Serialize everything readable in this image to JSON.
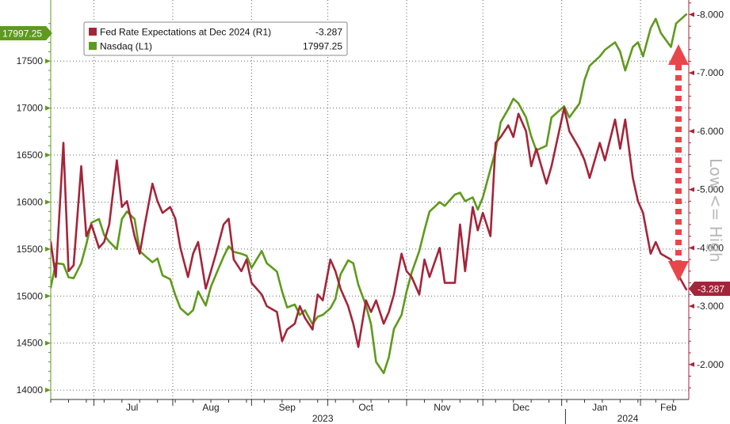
{
  "chart_data": {
    "type": "line",
    "title": "",
    "colors": {
      "fed": "#a3253a",
      "nasdaq": "#5e9a1c",
      "arrow": "#e8464a",
      "annotation": "#b8b8b8",
      "grid": "#666666"
    },
    "x_axis": {
      "months": [
        "Jul",
        "Aug",
        "Sep",
        "Oct",
        "Nov",
        "Dec",
        "Jan",
        "Feb"
      ],
      "years": [
        "2023",
        "2024"
      ],
      "range": [
        "2023-06-14",
        "2024-02-20"
      ]
    },
    "y_left": {
      "label": "",
      "range": [
        13900,
        18150
      ],
      "ticks": [
        "14000",
        "14500",
        "15000",
        "15500",
        "16000",
        "16500",
        "17000",
        "17500"
      ],
      "tick_values": [
        14000,
        14500,
        15000,
        15500,
        16000,
        16500,
        17000,
        17500
      ]
    },
    "y_right": {
      "label": "",
      "range": [
        -1.4,
        -8.25
      ],
      "inverted": true,
      "ticks": [
        "-8.000",
        "-7.000",
        "-6.000",
        "-5.000",
        "-4.000",
        "-3.000",
        "-2.000"
      ],
      "tick_values": [
        -8,
        -7,
        -6,
        -5,
        -4,
        -3,
        -2
      ]
    },
    "grid": true,
    "legend": {
      "placement": "top-left",
      "entries": [
        {
          "label": "Fed Rate Expectations at Dec 2024 (R1)",
          "value": "-3.287"
        },
        {
          "label": "Nasdaq (L1)",
          "value": "17997.25"
        }
      ]
    },
    "callouts": {
      "left": "17997.25",
      "right": "-3.287"
    },
    "annotation": "Low <= High",
    "series": [
      {
        "name": "Nasdaq (L1)",
        "axis": "left",
        "x": [
          "2023-06-14",
          "2023-06-16",
          "2023-06-19",
          "2023-06-21",
          "2023-06-23",
          "2023-06-26",
          "2023-06-28",
          "2023-06-30",
          "2023-07-03",
          "2023-07-05",
          "2023-07-07",
          "2023-07-10",
          "2023-07-12",
          "2023-07-14",
          "2023-07-17",
          "2023-07-19",
          "2023-07-21",
          "2023-07-24",
          "2023-07-26",
          "2023-07-28",
          "2023-07-31",
          "2023-08-02",
          "2023-08-04",
          "2023-08-07",
          "2023-08-09",
          "2023-08-11",
          "2023-08-14",
          "2023-08-16",
          "2023-08-18",
          "2023-08-21",
          "2023-08-23",
          "2023-08-25",
          "2023-08-28",
          "2023-08-30",
          "2023-09-01",
          "2023-09-05",
          "2023-09-07",
          "2023-09-11",
          "2023-09-13",
          "2023-09-15",
          "2023-09-18",
          "2023-09-20",
          "2023-09-22",
          "2023-09-25",
          "2023-09-27",
          "2023-09-29",
          "2023-10-02",
          "2023-10-04",
          "2023-10-06",
          "2023-10-09",
          "2023-10-11",
          "2023-10-13",
          "2023-10-16",
          "2023-10-18",
          "2023-10-20",
          "2023-10-23",
          "2023-10-25",
          "2023-10-27",
          "2023-10-30",
          "2023-11-01",
          "2023-11-03",
          "2023-11-06",
          "2023-11-08",
          "2023-11-10",
          "2023-11-14",
          "2023-11-16",
          "2023-11-20",
          "2023-11-22",
          "2023-11-24",
          "2023-11-27",
          "2023-11-29",
          "2023-12-01",
          "2023-12-04",
          "2023-12-06",
          "2023-12-08",
          "2023-12-11",
          "2023-12-13",
          "2023-12-15",
          "2023-12-18",
          "2023-12-20",
          "2023-12-22",
          "2023-12-26",
          "2023-12-28",
          "2024-01-02",
          "2024-01-04",
          "2024-01-08",
          "2024-01-10",
          "2024-01-12",
          "2024-01-16",
          "2024-01-18",
          "2024-01-22",
          "2024-01-24",
          "2024-01-26",
          "2024-01-29",
          "2024-01-31",
          "2024-02-02",
          "2024-02-05",
          "2024-02-07",
          "2024-02-09",
          "2024-02-13",
          "2024-02-15",
          "2024-02-19"
        ],
        "values": [
          15090,
          15350,
          15340,
          15200,
          15190,
          15350,
          15550,
          15780,
          15820,
          15650,
          15580,
          15500,
          15820,
          15900,
          15820,
          15480,
          15430,
          15360,
          15400,
          15220,
          15180,
          15010,
          14870,
          14800,
          14850,
          15050,
          14900,
          15100,
          15230,
          15420,
          15530,
          15470,
          15450,
          15430,
          15300,
          15480,
          15350,
          15260,
          15050,
          14880,
          14910,
          14800,
          14850,
          14700,
          14780,
          14800,
          14870,
          14970,
          15230,
          15380,
          15350,
          15120,
          14900,
          14700,
          14300,
          14180,
          14350,
          14650,
          14800,
          15050,
          15250,
          15480,
          15700,
          15900,
          16000,
          15960,
          16080,
          16100,
          16010,
          16050,
          15920,
          16050,
          16350,
          16550,
          16850,
          16990,
          17100,
          17050,
          16900,
          16700,
          16550,
          16600,
          16900,
          17020,
          16900,
          17050,
          17300,
          17450,
          17550,
          17620,
          17700,
          17600,
          17400,
          17650,
          17700,
          17550,
          17850,
          17950,
          17800,
          17650,
          17900,
          17997.25
        ]
      },
      {
        "name": "Fed Rate Expectations at Dec 2024 (R1)",
        "axis": "right",
        "x": [
          "2023-06-14",
          "2023-06-16",
          "2023-06-19",
          "2023-06-21",
          "2023-06-23",
          "2023-06-26",
          "2023-06-28",
          "2023-06-30",
          "2023-07-03",
          "2023-07-05",
          "2023-07-07",
          "2023-07-10",
          "2023-07-12",
          "2023-07-14",
          "2023-07-17",
          "2023-07-19",
          "2023-07-21",
          "2023-07-24",
          "2023-07-26",
          "2023-07-28",
          "2023-07-31",
          "2023-08-02",
          "2023-08-04",
          "2023-08-07",
          "2023-08-09",
          "2023-08-11",
          "2023-08-14",
          "2023-08-16",
          "2023-08-18",
          "2023-08-21",
          "2023-08-23",
          "2023-08-25",
          "2023-08-28",
          "2023-08-30",
          "2023-09-01",
          "2023-09-05",
          "2023-09-07",
          "2023-09-11",
          "2023-09-13",
          "2023-09-15",
          "2023-09-18",
          "2023-09-20",
          "2023-09-22",
          "2023-09-25",
          "2023-09-27",
          "2023-09-29",
          "2023-10-02",
          "2023-10-04",
          "2023-10-06",
          "2023-10-09",
          "2023-10-11",
          "2023-10-13",
          "2023-10-16",
          "2023-10-18",
          "2023-10-20",
          "2023-10-23",
          "2023-10-25",
          "2023-10-27",
          "2023-10-30",
          "2023-11-01",
          "2023-11-03",
          "2023-11-06",
          "2023-11-08",
          "2023-11-10",
          "2023-11-14",
          "2023-11-16",
          "2023-11-20",
          "2023-11-22",
          "2023-11-24",
          "2023-11-27",
          "2023-11-29",
          "2023-12-01",
          "2023-12-04",
          "2023-12-06",
          "2023-12-08",
          "2023-12-11",
          "2023-12-13",
          "2023-12-15",
          "2023-12-18",
          "2023-12-20",
          "2023-12-22",
          "2023-12-26",
          "2023-12-28",
          "2024-01-02",
          "2024-01-04",
          "2024-01-08",
          "2024-01-10",
          "2024-01-12",
          "2024-01-16",
          "2024-01-18",
          "2024-01-22",
          "2024-01-24",
          "2024-01-26",
          "2024-01-29",
          "2024-01-31",
          "2024-02-02",
          "2024-02-05",
          "2024-02-07",
          "2024-02-09",
          "2024-02-13",
          "2024-02-15",
          "2024-02-19"
        ],
        "values": [
          -4.1,
          -3.5,
          -5.8,
          -3.6,
          -3.7,
          -5.4,
          -4.2,
          -4.4,
          -4.0,
          -4.1,
          -4.4,
          -5.5,
          -4.7,
          -4.8,
          -4.2,
          -3.9,
          -4.4,
          -5.1,
          -4.8,
          -4.6,
          -4.7,
          -4.5,
          -4.0,
          -3.5,
          -3.9,
          -4.1,
          -3.3,
          -3.6,
          -3.9,
          -4.4,
          -4.5,
          -3.8,
          -3.6,
          -3.8,
          -3.4,
          -3.2,
          -3.0,
          -2.9,
          -2.4,
          -2.6,
          -2.7,
          -3.0,
          -2.8,
          -2.6,
          -3.2,
          -3.1,
          -3.8,
          -3.6,
          -3.3,
          -3.0,
          -2.7,
          -2.3,
          -3.1,
          -2.9,
          -3.1,
          -2.7,
          -2.9,
          -3.2,
          -3.9,
          -3.6,
          -3.5,
          -3.2,
          -3.8,
          -3.5,
          -4.0,
          -3.4,
          -3.4,
          -4.4,
          -3.6,
          -4.7,
          -4.3,
          -4.6,
          -4.2,
          -5.8,
          -5.9,
          -6.1,
          -5.9,
          -6.3,
          -6.0,
          -5.4,
          -5.7,
          -5.1,
          -5.4,
          -6.4,
          -6.0,
          -5.7,
          -5.5,
          -5.2,
          -5.8,
          -5.5,
          -6.2,
          -5.7,
          -6.2,
          -5.2,
          -4.8,
          -4.6,
          -3.9,
          -4.1,
          -3.9,
          -3.8,
          -3.6,
          -3.287
        ]
      }
    ]
  }
}
